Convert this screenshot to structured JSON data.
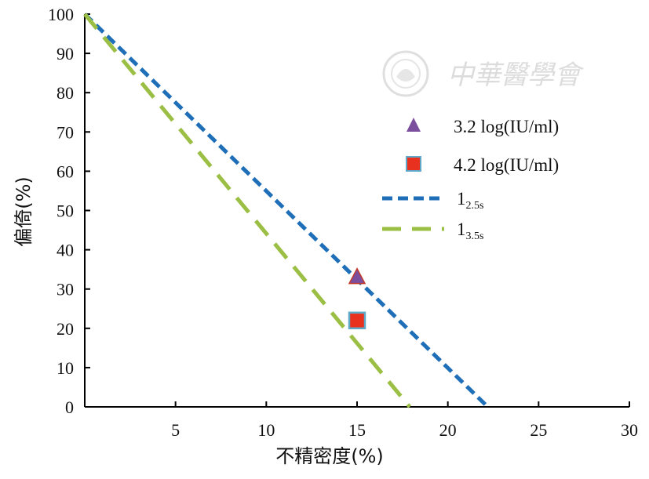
{
  "chart_data": {
    "type": "line",
    "title": "",
    "xlabel": "不精密度(%)",
    "ylabel": "偏倚(%)",
    "xlim": [
      0,
      30
    ],
    "ylim": [
      0,
      100
    ],
    "x_ticks": [
      5,
      10,
      15,
      20,
      25,
      30
    ],
    "y_ticks": [
      0,
      10,
      20,
      30,
      40,
      50,
      60,
      70,
      80,
      90,
      100
    ],
    "grid": false,
    "legend_position": "right",
    "series": [
      {
        "name": "1",
        "name_subscript": "2.5s",
        "kind": "line",
        "style": "dashed",
        "color": "#1f6fb8",
        "x": [
          0,
          22.2
        ],
        "y": [
          100,
          0
        ]
      },
      {
        "name": "1",
        "name_subscript": "3.5s",
        "kind": "line",
        "style": "long-dashed",
        "color": "#9bbf45",
        "x": [
          0,
          17.9
        ],
        "y": [
          100,
          0
        ]
      },
      {
        "name": "3.2 log(IU/ml)",
        "kind": "point",
        "marker": "triangle",
        "color": "#7b4f9e",
        "x": [
          15
        ],
        "y": [
          33
        ]
      },
      {
        "name": "4.2 log(IU/ml)",
        "kind": "point",
        "marker": "square",
        "color": "#e8321f",
        "edge_color": "#5fa8c8",
        "x": [
          15
        ],
        "y": [
          22
        ]
      }
    ]
  },
  "watermark": {
    "text": "中華醫學會",
    "icon": "society-seal-icon"
  }
}
